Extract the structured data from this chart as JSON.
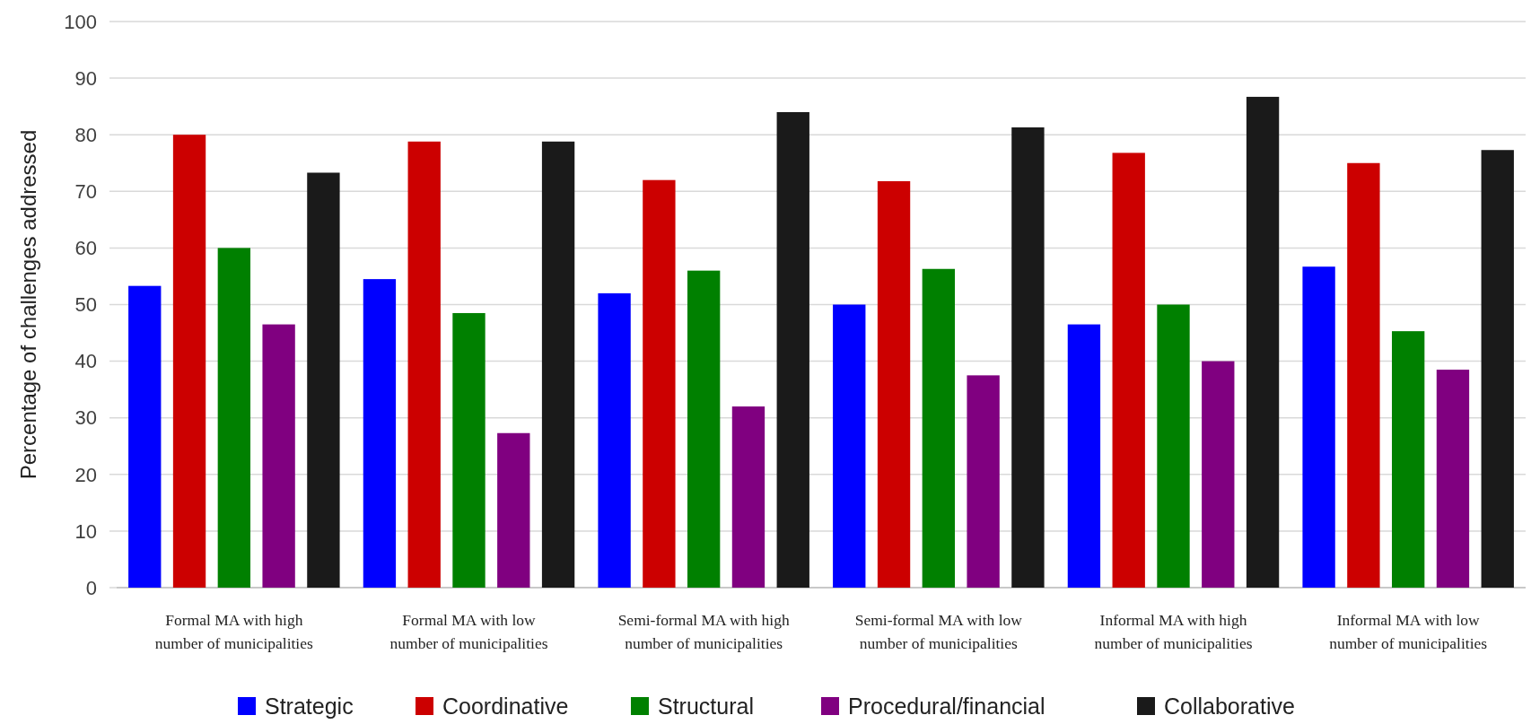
{
  "chart_data": {
    "type": "bar",
    "ylabel": "Percentage of challenges addressed",
    "categories": [
      "Formal MA with high number of municipalities",
      "Formal MA with low number of municipalities",
      "Semi-formal MA with high number of municipalities",
      "Semi-formal MA with low number of municipalities",
      "Informal MA with high number of municipalities",
      "Informal MA with low number of municipalities"
    ],
    "series": [
      {
        "name": "Strategic",
        "color": "#0000ff",
        "values": [
          53.3,
          54.5,
          52,
          50,
          46.5,
          56.7
        ]
      },
      {
        "name": "Coordinative",
        "color": "#cc0000",
        "values": [
          80,
          78.8,
          72,
          71.8,
          76.8,
          75
        ]
      },
      {
        "name": "Structural",
        "color": "#008000",
        "values": [
          60,
          48.5,
          56,
          56.3,
          50,
          45.3
        ]
      },
      {
        "name": "Procedural/financial",
        "color": "#800080",
        "values": [
          46.5,
          27.3,
          32,
          37.5,
          40,
          38.5
        ]
      },
      {
        "name": "Collaborative",
        "color": "#1a1a1a",
        "values": [
          73.3,
          78.8,
          84,
          81.3,
          86.7,
          77.3
        ]
      }
    ],
    "ylim": [
      0,
      100
    ],
    "yticks": [
      0,
      10,
      20,
      30,
      40,
      50,
      60,
      70,
      80,
      90,
      100
    ],
    "grid": "y",
    "legend": "bottom"
  }
}
